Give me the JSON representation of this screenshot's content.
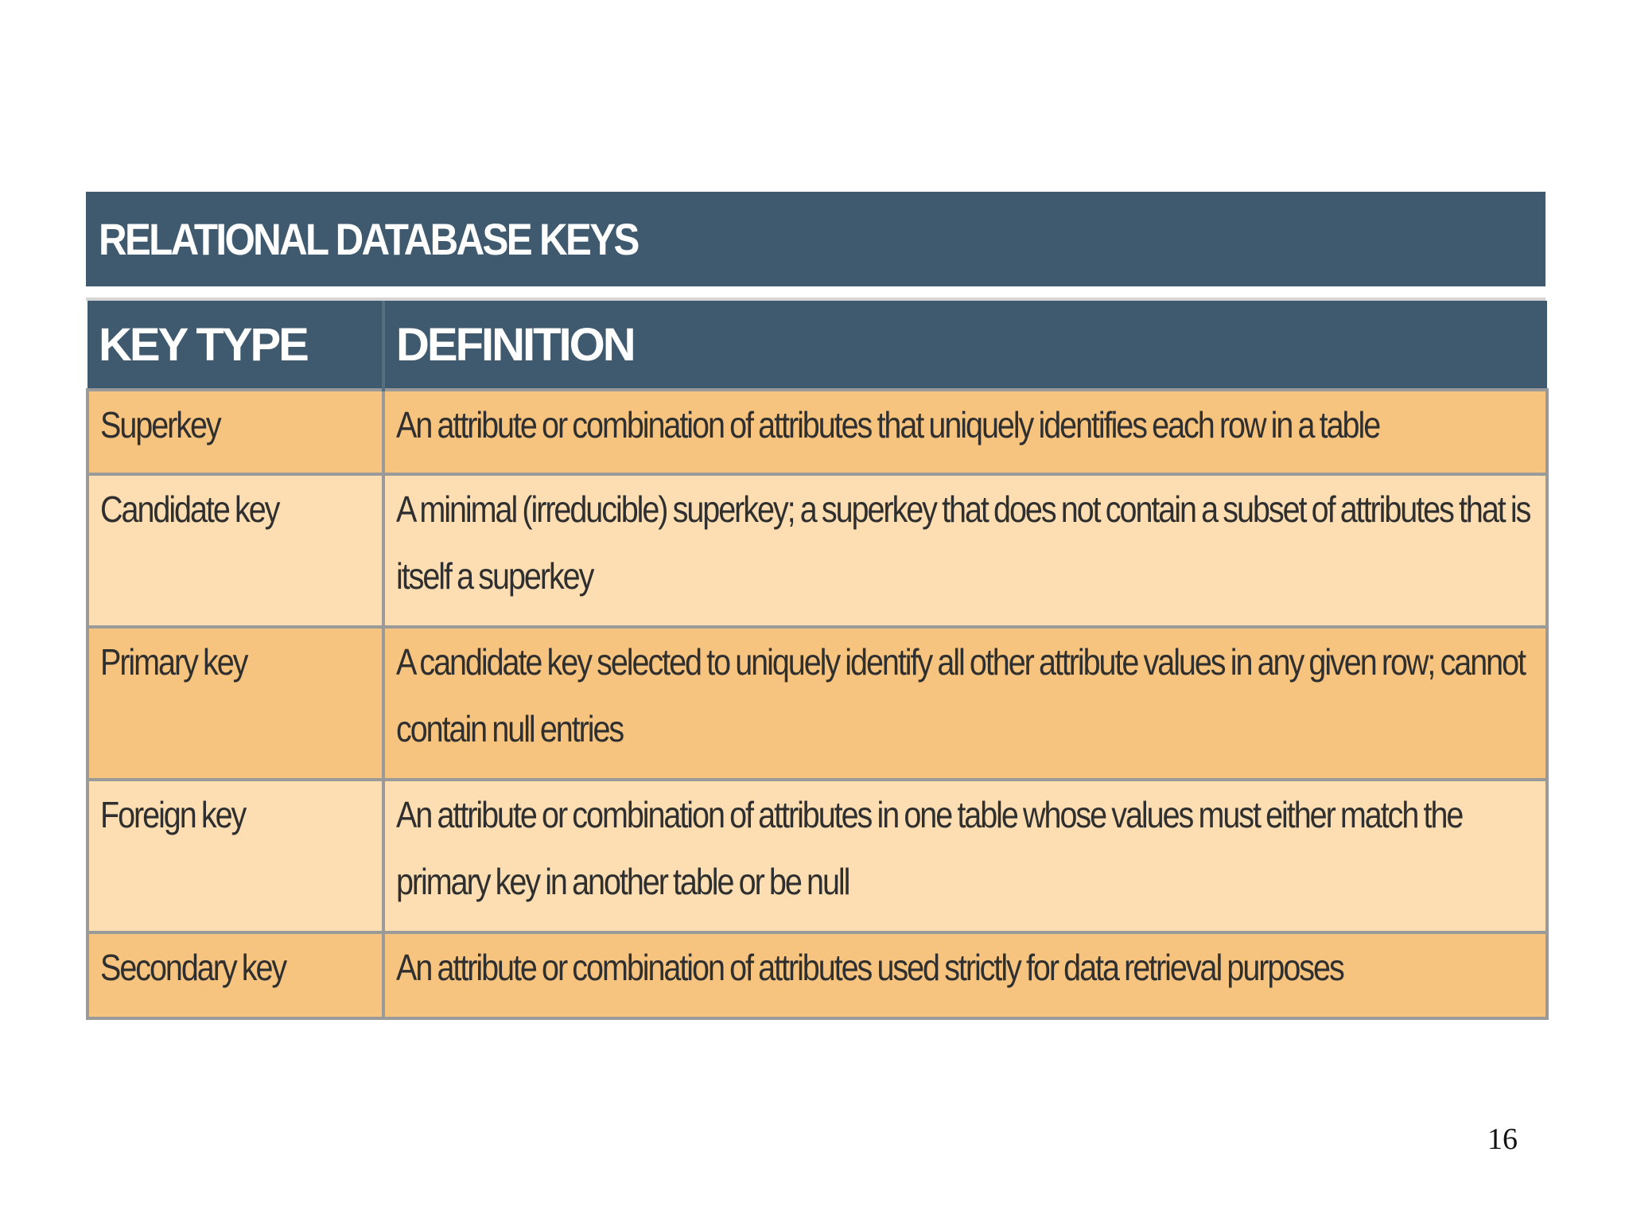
{
  "table": {
    "title": "RELATIONAL DATABASE KEYS",
    "headers": {
      "key_type": "KEY TYPE",
      "definition": "DEFINITION"
    },
    "rows": [
      {
        "key_type": "Superkey",
        "definition": "An attribute or combination of attributes that uniquely identifies each row in a table"
      },
      {
        "key_type": "Candidate key",
        "definition": "A minimal (irreducible) superkey; a superkey that does not contain a subset of attributes that is itself a superkey"
      },
      {
        "key_type": "Primary key",
        "definition": "A candidate key selected to uniquely identify all other attribute values in any given row; cannot contain null entries"
      },
      {
        "key_type": "Foreign key",
        "definition": "An attribute or combination of attributes in one table whose values must either match the primary key in another table or be null"
      },
      {
        "key_type": "Secondary key",
        "definition": "An attribute or combination of attributes used strictly for data retrieval purposes"
      }
    ]
  },
  "page_number": "16",
  "colors": {
    "header_bg": "#3f5a6e",
    "row_dark": "#f7c47f",
    "row_light": "#fddeb2"
  }
}
